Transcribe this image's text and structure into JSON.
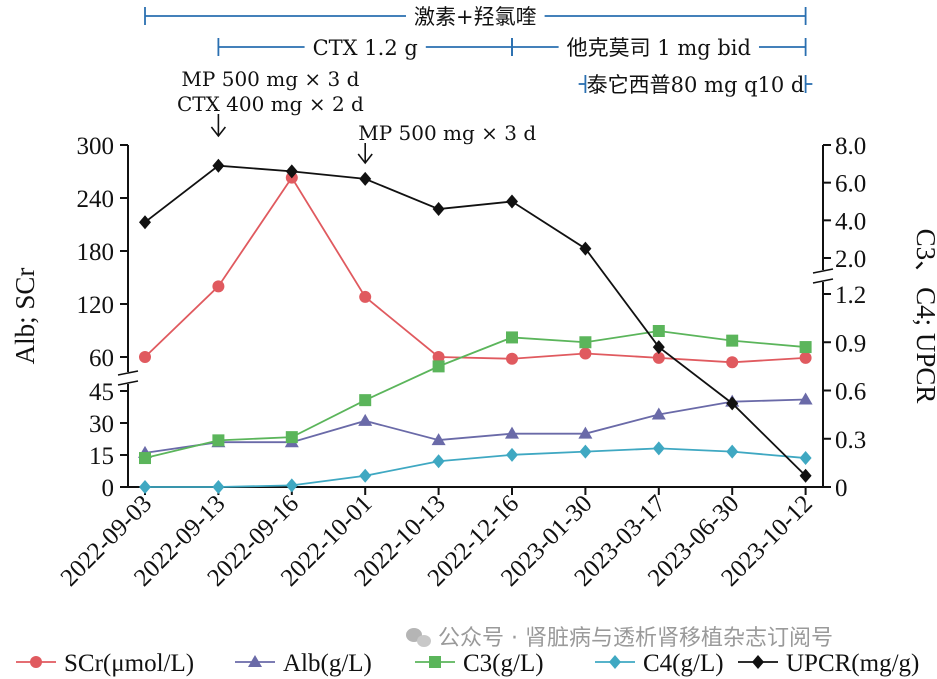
{
  "chart_data": {
    "type": "line",
    "categories": [
      "2022-09-03",
      "2022-09-13",
      "2022-09-16",
      "2022-10-01",
      "2022-10-13",
      "2022-12-16",
      "2023-01-30",
      "2023-03-17",
      "2023-06-30",
      "2023-10-12"
    ],
    "left_axis": {
      "title": "Alb; SCr",
      "upper_ticks": [
        "300",
        "240",
        "180",
        "120",
        "60"
      ],
      "lower_ticks": [
        "45",
        "30",
        "15",
        "0"
      ]
    },
    "right_axis": {
      "title": "C3、C4; UPCR",
      "upper_ticks": [
        "8.0",
        "6.0",
        "4.0",
        "2.0"
      ],
      "lower_ticks": [
        "1.2",
        "0.9",
        "0.6",
        "0.3",
        "0"
      ]
    },
    "series": [
      {
        "name": "SCr(μmol/L)",
        "axis": "left",
        "color": "#e05a5f",
        "marker": "circle",
        "values": [
          60,
          140,
          263,
          128,
          60,
          58,
          64,
          59,
          54,
          59
        ]
      },
      {
        "name": "Alb(g/L)",
        "axis": "left",
        "color": "#6a6aa8",
        "marker": "triangle",
        "values": [
          16,
          21,
          21,
          31,
          22,
          25,
          25,
          34,
          40,
          41
        ]
      },
      {
        "name": "C3(g/L)",
        "axis": "right",
        "color": "#5bb55b",
        "marker": "square",
        "values": [
          0.18,
          0.29,
          0.31,
          0.54,
          0.75,
          0.93,
          0.9,
          0.97,
          0.91,
          0.87
        ]
      },
      {
        "name": "C4(g/L)",
        "axis": "right",
        "color": "#3fa8c2",
        "marker": "diamond",
        "values": [
          0.0,
          0.0,
          0.01,
          0.07,
          0.16,
          0.2,
          0.22,
          0.24,
          0.22,
          0.18
        ]
      },
      {
        "name": "UPCR(mg/g)",
        "axis": "right",
        "color": "#111111",
        "marker": "diamond",
        "values": [
          3.9,
          6.9,
          6.6,
          6.2,
          4.6,
          5.0,
          2.5,
          0.87,
          0.52,
          0.07
        ]
      }
    ],
    "treatments": [
      {
        "label": "激素+羟氯喹",
        "from": "2022-09-03",
        "to": "2023-10-12"
      },
      {
        "label": "CTX 1.2 g",
        "from": "2022-09-13",
        "to": "2022-12-16"
      },
      {
        "label": "他克莫司 1 mg bid",
        "from": "2022-12-16",
        "to": "2023-10-12"
      },
      {
        "label": "泰它西普80 mg q10 d",
        "from": "2023-01-30",
        "to": "2023-10-12"
      }
    ],
    "annotations": [
      {
        "lines": [
          "MP 500 mg × 3 d",
          "CTX 400 mg × 2 d"
        ],
        "at": "2022-09-13"
      },
      {
        "lines": [
          "MP 500 mg × 3 d"
        ],
        "at": "2022-10-01"
      }
    ],
    "colors": {
      "axis": "#111111",
      "bracket": "#2a6fb0"
    }
  },
  "watermark": "公众号 · 肾脏病与透析肾移植杂志订阅号"
}
